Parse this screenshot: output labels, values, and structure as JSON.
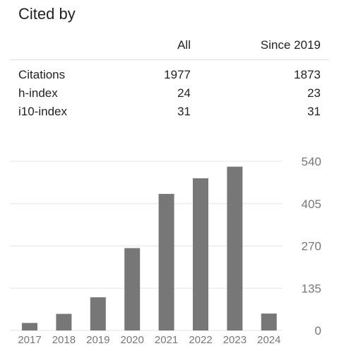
{
  "title": "Cited by",
  "table": {
    "headers": [
      "",
      "All",
      "Since 2019"
    ],
    "rows": [
      {
        "label": "Citations",
        "all": "1977",
        "since": "1873"
      },
      {
        "label": "h-index",
        "all": "24",
        "since": "23"
      },
      {
        "label": "i10-index",
        "all": "31",
        "since": "31"
      }
    ]
  },
  "chart_data": {
    "type": "bar",
    "categories": [
      "2017",
      "2018",
      "2019",
      "2020",
      "2021",
      "2022",
      "2023",
      "2024"
    ],
    "values": [
      24,
      53,
      106,
      263,
      436,
      486,
      523,
      54
    ],
    "yticks": [
      0,
      135,
      270,
      405,
      540
    ],
    "ylim": [
      0,
      540
    ],
    "bar_color": "#777777",
    "grid": true
  }
}
